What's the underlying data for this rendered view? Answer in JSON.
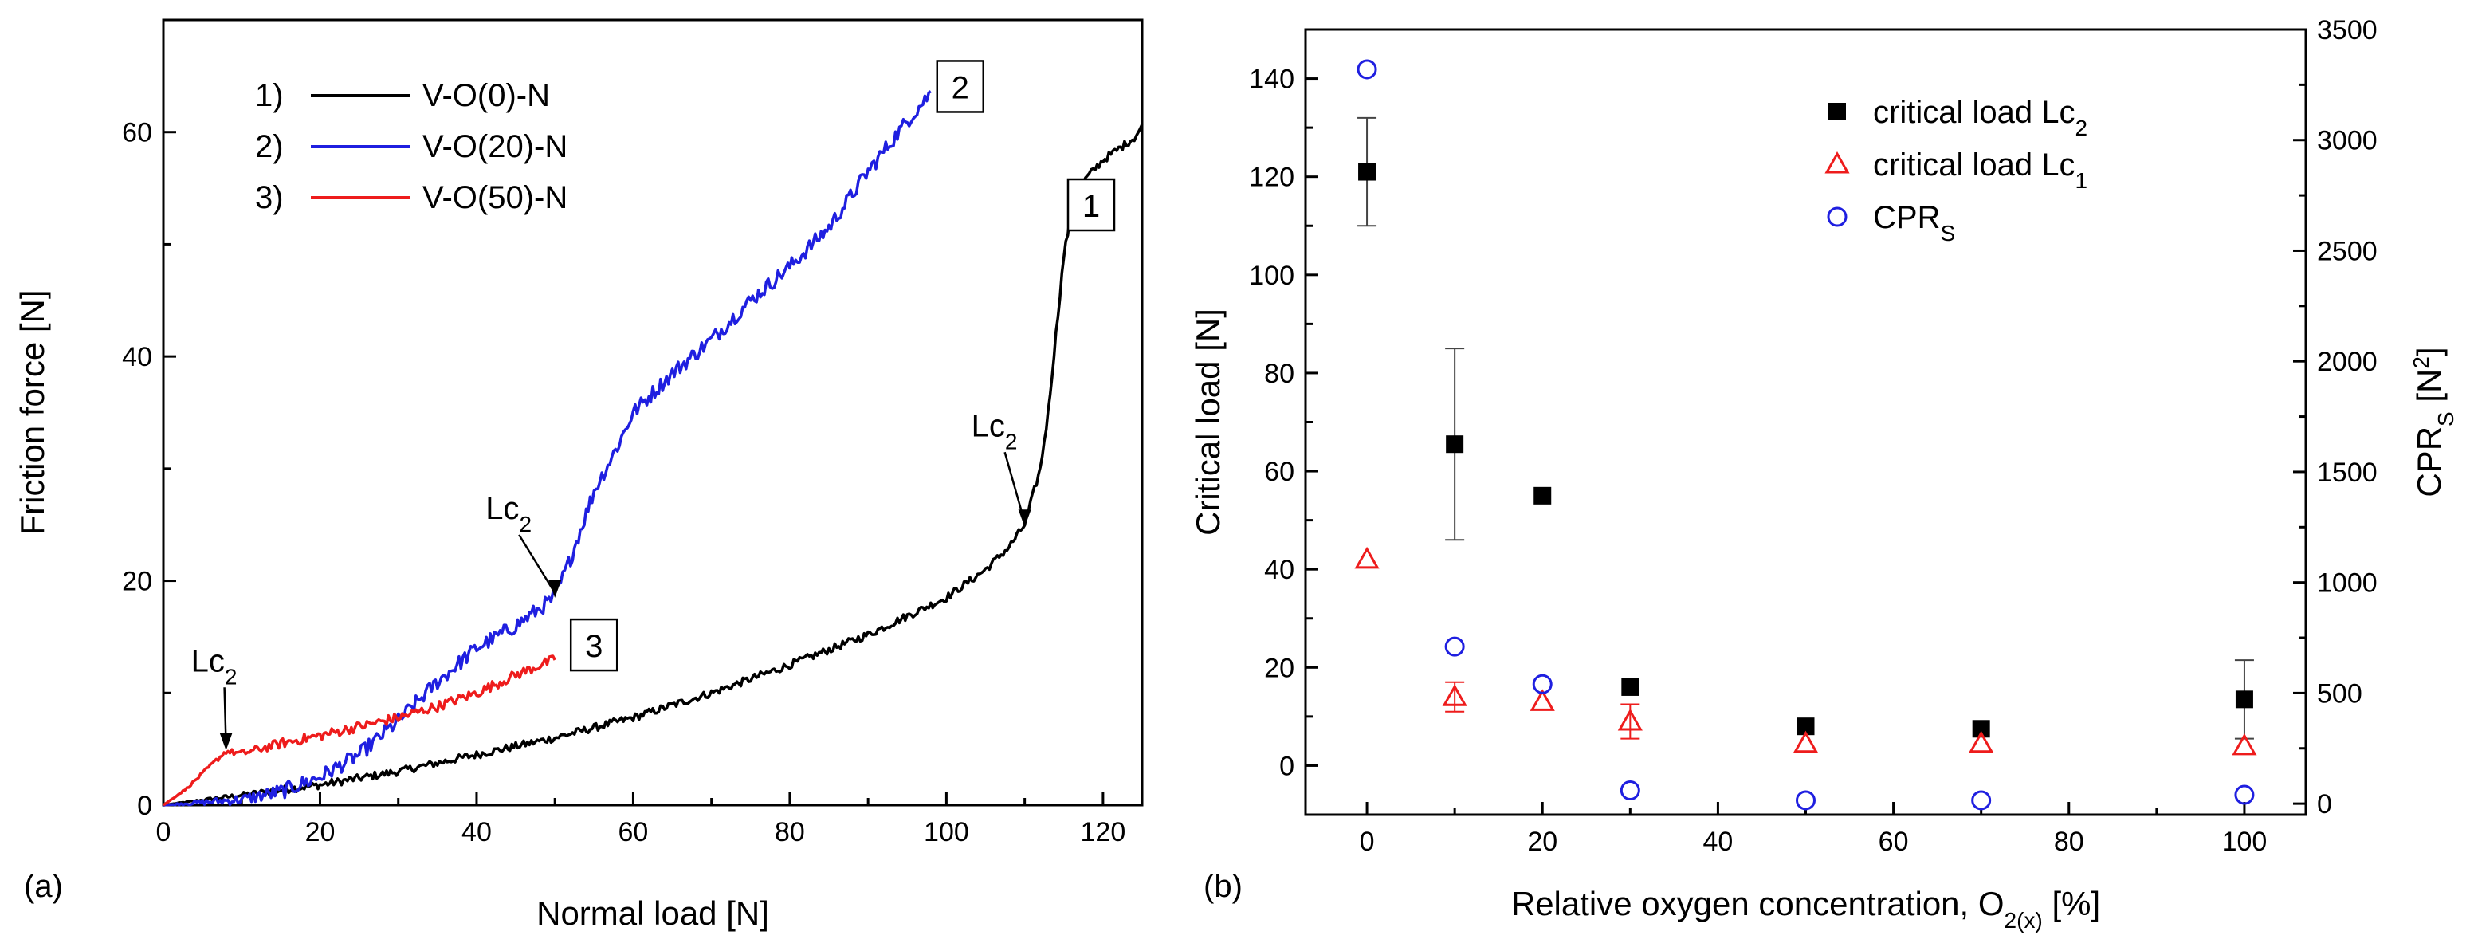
{
  "chart_data": [
    {
      "type": "line",
      "panel_label": "(a)",
      "xlabel": "Normal load [N]",
      "ylabel": "Friction force [N]",
      "xlim": [
        0,
        125
      ],
      "ylim": [
        0,
        70
      ],
      "xticks": [
        0,
        20,
        40,
        60,
        80,
        100,
        120
      ],
      "yticks": [
        0,
        20,
        40,
        60
      ],
      "grid": false,
      "legend_position": "top-left",
      "series": [
        {
          "name": "V-O(0)-N",
          "legend_index": "1)",
          "color": "#000000",
          "end_label": "1",
          "x": [
            0,
            10,
            20,
            30,
            40,
            50,
            60,
            70,
            80,
            90,
            100,
            105,
            108,
            110,
            112,
            113,
            114,
            115,
            116,
            117,
            118,
            120,
            122,
            124,
            125
          ],
          "y": [
            0,
            0.9,
            1.8,
            3.0,
            4.5,
            6.0,
            7.8,
            10.0,
            12.5,
            15.2,
            18.5,
            21.0,
            23.0,
            25.0,
            30.0,
            35.0,
            42.0,
            49.0,
            53.0,
            55.0,
            56.0,
            57.5,
            58.5,
            59.5,
            60.5
          ]
        },
        {
          "name": "V-O(20)-N",
          "legend_index": "2)",
          "color": "#1f1fe0",
          "end_label": "2",
          "x": [
            0,
            10,
            15,
            20,
            25,
            30,
            35,
            40,
            45,
            50,
            52,
            55,
            58,
            60,
            65,
            70,
            75,
            80,
            85,
            90,
            95,
            98
          ],
          "y": [
            0,
            0.5,
            1.2,
            2.5,
            4.5,
            7.5,
            11.0,
            14.0,
            16.0,
            18.5,
            22.0,
            28.0,
            32.0,
            35.0,
            38.5,
            41.5,
            45.0,
            48.0,
            51.5,
            56.5,
            61.0,
            63.5
          ]
        },
        {
          "name": "V-O(50)-N",
          "legend_index": "3)",
          "color": "#ee1c1c",
          "end_label": "3",
          "x": [
            0,
            3,
            6,
            8,
            10,
            15,
            20,
            25,
            30,
            35,
            40,
            45,
            50
          ],
          "y": [
            0,
            1.5,
            3.5,
            4.8,
            4.6,
            5.5,
            6.2,
            7.0,
            7.8,
            8.8,
            10.0,
            11.6,
            13.0
          ]
        }
      ],
      "annotations": [
        {
          "text": "Lc",
          "sub": "2",
          "x": 8,
          "y": 4.6
        },
        {
          "text": "Lc",
          "sub": "2",
          "x": 50,
          "y": 18.2
        },
        {
          "text": "Lc",
          "sub": "2",
          "x": 110,
          "y": 24.5
        }
      ]
    },
    {
      "type": "scatter",
      "panel_label": "(b)",
      "xlabel": "Relative oxygen concentration, O",
      "xlabel_sub": "2(x)",
      "xlabel_suffix": " [%]",
      "ylabel": "Critical load [N]",
      "y2label": "CPR",
      "y2label_sub": "S",
      "y2label_suffix": " [N",
      "y2label_sup": "2",
      "y2label_end": "]",
      "xlim": [
        -7,
        107
      ],
      "ylim": [
        -10,
        150
      ],
      "y2lim": [
        -50,
        3500
      ],
      "xticks": [
        0,
        20,
        40,
        60,
        80,
        100
      ],
      "yticks": [
        0,
        20,
        40,
        60,
        80,
        100,
        120,
        140
      ],
      "y2ticks": [
        0,
        500,
        1000,
        1500,
        2000,
        2500,
        3000,
        3500
      ],
      "grid": false,
      "legend_position": "top-right",
      "series": [
        {
          "name": "critical load Lc",
          "name_sub": "2",
          "marker": "filled-square",
          "color": "#000000",
          "axis": "left",
          "x": [
            0,
            10,
            20,
            30,
            50,
            70,
            100
          ],
          "y": [
            121,
            65.5,
            55,
            16,
            8,
            7.5,
            13.5
          ],
          "err": [
            11,
            19.5,
            0,
            0,
            0,
            0,
            8
          ]
        },
        {
          "name": "critical load Lc",
          "name_sub": "1",
          "marker": "open-triangle",
          "color": "#ee1c1c",
          "axis": "left",
          "x": [
            0,
            10,
            20,
            30,
            50,
            70,
            100
          ],
          "y": [
            42,
            14,
            13,
            9,
            4.5,
            4.5,
            4
          ],
          "err": [
            0,
            3,
            0,
            3.5,
            0,
            0,
            0
          ]
        },
        {
          "name": "CPR",
          "name_sub": "S",
          "marker": "open-circle",
          "color": "#1f1fe0",
          "axis": "right",
          "x": [
            0,
            10,
            20,
            30,
            50,
            70,
            100
          ],
          "y": [
            3320,
            710,
            540,
            60,
            15,
            15,
            40
          ]
        }
      ]
    }
  ]
}
